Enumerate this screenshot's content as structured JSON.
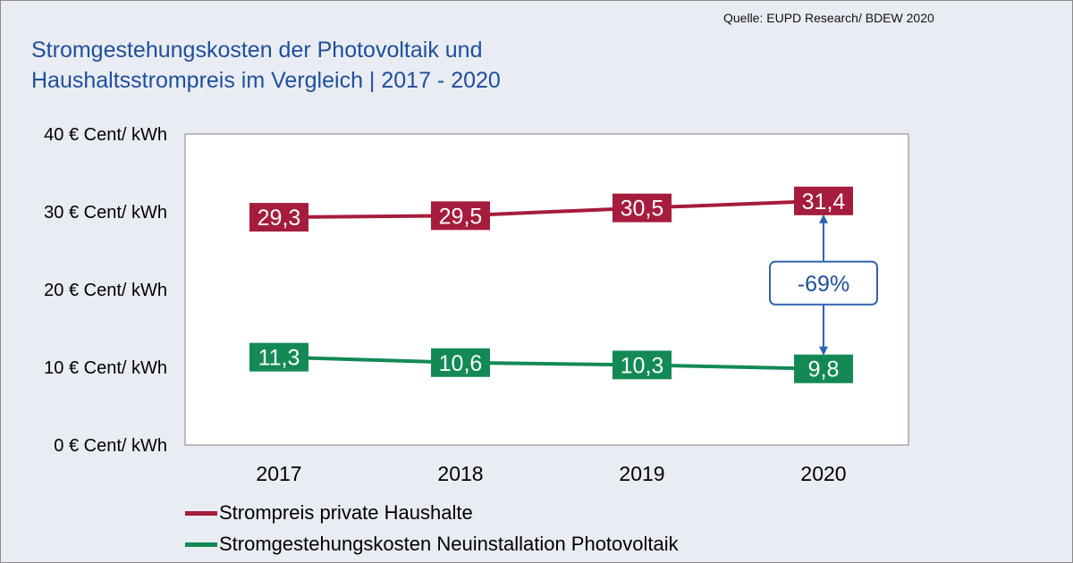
{
  "source": "Quelle: EUPD Research/ BDEW  2020",
  "title_lines": [
    "Stromgestehungskosten der Photovoltaik und",
    "Haushaltsstrompreis im Vergleich | 2017 - 2020"
  ],
  "colors": {
    "background": "#e9edf3",
    "title": "#1f4e9d",
    "household": "#a51c3d",
    "pv": "#138a56",
    "annotation": "#2f63b0",
    "annotation_text": "#1f4e9d"
  },
  "chart_data": {
    "type": "line",
    "title": "Stromgestehungskosten der Photovoltaik und Haushaltsstrompreis im Vergleich | 2017 - 2020",
    "x": [
      "2017",
      "2018",
      "2019",
      "2020"
    ],
    "ylim": [
      0,
      40
    ],
    "yticks": [
      0,
      10,
      20,
      30,
      40
    ],
    "ytick_labels": [
      "0 € Cent/ kWh",
      "10 € Cent/ kWh",
      "20 € Cent/ kWh",
      "30 € Cent/ kWh",
      "40 € Cent/ kWh"
    ],
    "grid": false,
    "legend_position": "bottom-left",
    "series": [
      {
        "name": "Strompreis private Haushalte",
        "values": [
          29.3,
          29.5,
          30.5,
          31.4
        ],
        "labels": [
          "29,3",
          "29,5",
          "30,5",
          "31,4"
        ],
        "color": "#a51c3d"
      },
      {
        "name": "Stromgestehungskosten Neuinstallation Photovoltaik",
        "values": [
          11.3,
          10.6,
          10.3,
          9.8
        ],
        "labels": [
          "11,3",
          "10,6",
          "10,3",
          "9,8"
        ],
        "color": "#138a56"
      }
    ],
    "annotation": {
      "text": "-69%",
      "x": "2020",
      "from": 31.4,
      "to": 9.8
    }
  }
}
